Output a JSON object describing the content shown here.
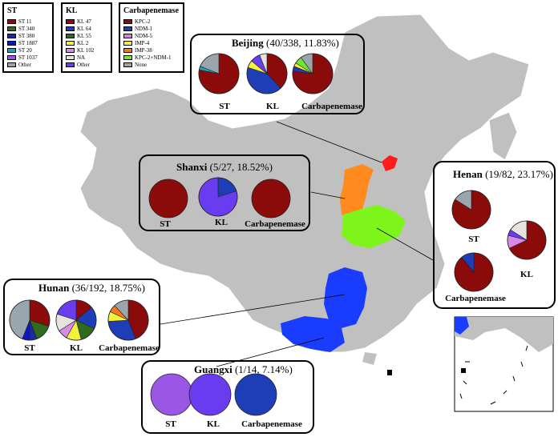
{
  "colors": {
    "land": "#c0c0c0",
    "sea_border": "#ffffff",
    "beijing": "#ff1c1c",
    "shanxi": "#ff8a1e",
    "henan": "#7df51a",
    "hunan": "#1a3cff",
    "guangxi": "#1a3cff"
  },
  "legends": {
    "st": {
      "title": "ST",
      "items": [
        {
          "label": "ST 11",
          "color": "#8b0a0a"
        },
        {
          "label": "ST 340",
          "color": "#2e6b1c"
        },
        {
          "label": "ST 380",
          "color": "#1e2a9c"
        },
        {
          "label": "ST 1887",
          "color": "#0b14c8"
        },
        {
          "label": "ST 20",
          "color": "#1aa3b8"
        },
        {
          "label": "ST 1037",
          "color": "#9a57e6"
        },
        {
          "label": "Other",
          "color": "#9aa6ad"
        }
      ]
    },
    "kl": {
      "title": "KL",
      "items": [
        {
          "label": "KL 47",
          "color": "#8b0a0a"
        },
        {
          "label": "KL 64",
          "color": "#1e3eb8"
        },
        {
          "label": "KL 55",
          "color": "#2e6b1c"
        },
        {
          "label": "KL 2",
          "color": "#f2f23a"
        },
        {
          "label": "KL 102",
          "color": "#d88ae8"
        },
        {
          "label": "NA",
          "color": "#e6e3de"
        },
        {
          "label": "Other",
          "color": "#6a3cf0"
        }
      ]
    },
    "carb": {
      "title": "Carbapenemase",
      "items": [
        {
          "label": "KPC-2",
          "color": "#8b0a0a"
        },
        {
          "label": "NDM-1",
          "color": "#1e3eb8"
        },
        {
          "label": "NDM-5",
          "color": "#d77de8"
        },
        {
          "label": "IMP-4",
          "color": "#f2f23a"
        },
        {
          "label": "IMP-38",
          "color": "#f47a1c"
        },
        {
          "label": "KPC-2+NDM-1",
          "color": "#6ee82c"
        },
        {
          "label": "None",
          "color": "#9aa6ad"
        }
      ]
    }
  },
  "panels": {
    "beijing": {
      "name": "Beijing",
      "stats": "(40/338, 11.83%)",
      "labels": [
        "ST",
        "KL",
        "Carbapenemase"
      ]
    },
    "shanxi": {
      "name": "Shanxi",
      "stats": "(5/27, 18.52%)",
      "labels": [
        "ST",
        "KL",
        "Carbapenemase"
      ]
    },
    "henan": {
      "name": "Henan",
      "stats": "(19/82, 23.17%)",
      "labels": [
        "ST",
        "KL",
        "Carbapenemase"
      ]
    },
    "hunan": {
      "name": "Hunan",
      "stats": "(36/192, 18.75%)",
      "labels": [
        "ST",
        "KL",
        "Carbapenemase"
      ]
    },
    "guangxi": {
      "name": "Guangxi",
      "stats": "(1/14, 7.14%)",
      "labels": [
        "ST",
        "KL",
        "Carbapenemase"
      ]
    }
  },
  "pies": {
    "beijing_st": [
      {
        "v": 0.78,
        "c": "#8b0a0a"
      },
      {
        "v": 0.03,
        "c": "#1aa3b8"
      },
      {
        "v": 0.19,
        "c": "#9aa6ad"
      }
    ],
    "beijing_kl": [
      {
        "v": 0.38,
        "c": "#8b0a0a"
      },
      {
        "v": 0.42,
        "c": "#1e3eb8"
      },
      {
        "v": 0.06,
        "c": "#f2f23a"
      },
      {
        "v": 0.08,
        "c": "#6a3cf0"
      },
      {
        "v": 0.06,
        "c": "#e6e3de"
      }
    ],
    "beijing_carb": [
      {
        "v": 0.77,
        "c": "#8b0a0a"
      },
      {
        "v": 0.04,
        "c": "#1e3eb8"
      },
      {
        "v": 0.03,
        "c": "#f2f23a"
      },
      {
        "v": 0.06,
        "c": "#6ee82c"
      },
      {
        "v": 0.1,
        "c": "#9aa6ad"
      }
    ],
    "shanxi_st": [
      {
        "v": 1.0,
        "c": "#8b0a0a"
      }
    ],
    "shanxi_kl": [
      {
        "v": 0.2,
        "c": "#1e3eb8"
      },
      {
        "v": 0.8,
        "c": "#6a3cf0"
      }
    ],
    "shanxi_carb": [
      {
        "v": 1.0,
        "c": "#8b0a0a"
      }
    ],
    "henan_st": [
      {
        "v": 0.84,
        "c": "#8b0a0a"
      },
      {
        "v": 0.16,
        "c": "#9aa6ad"
      }
    ],
    "henan_kl": [
      {
        "v": 0.68,
        "c": "#8b0a0a"
      },
      {
        "v": 0.11,
        "c": "#d88ae8"
      },
      {
        "v": 0.05,
        "c": "#6a3cf0"
      },
      {
        "v": 0.16,
        "c": "#e6e3de"
      }
    ],
    "henan_carb": [
      {
        "v": 0.89,
        "c": "#8b0a0a"
      },
      {
        "v": 0.11,
        "c": "#1e3eb8"
      }
    ],
    "hunan_st": [
      {
        "v": 0.3,
        "c": "#8b0a0a"
      },
      {
        "v": 0.14,
        "c": "#2e6b1c"
      },
      {
        "v": 0.06,
        "c": "#1e2a9c"
      },
      {
        "v": 0.06,
        "c": "#0b14c8"
      },
      {
        "v": 0.44,
        "c": "#9aa6ad"
      }
    ],
    "hunan_kl": [
      {
        "v": 0.14,
        "c": "#8b0a0a"
      },
      {
        "v": 0.18,
        "c": "#1e3eb8"
      },
      {
        "v": 0.14,
        "c": "#2e6b1c"
      },
      {
        "v": 0.12,
        "c": "#f2f23a"
      },
      {
        "v": 0.08,
        "c": "#d88ae8"
      },
      {
        "v": 0.14,
        "c": "#e6e3de"
      },
      {
        "v": 0.2,
        "c": "#6a3cf0"
      }
    ],
    "hunan_carb": [
      {
        "v": 0.44,
        "c": "#8b0a0a"
      },
      {
        "v": 0.3,
        "c": "#1e3eb8"
      },
      {
        "v": 0.08,
        "c": "#f2f23a"
      },
      {
        "v": 0.06,
        "c": "#f47a1c"
      },
      {
        "v": 0.12,
        "c": "#9aa6ad"
      }
    ],
    "guangxi_st": [
      {
        "v": 1.0,
        "c": "#9a57e6"
      }
    ],
    "guangxi_kl": [
      {
        "v": 1.0,
        "c": "#6a3cf0"
      }
    ],
    "guangxi_carb": [
      {
        "v": 1.0,
        "c": "#1e3eb8"
      }
    ]
  }
}
